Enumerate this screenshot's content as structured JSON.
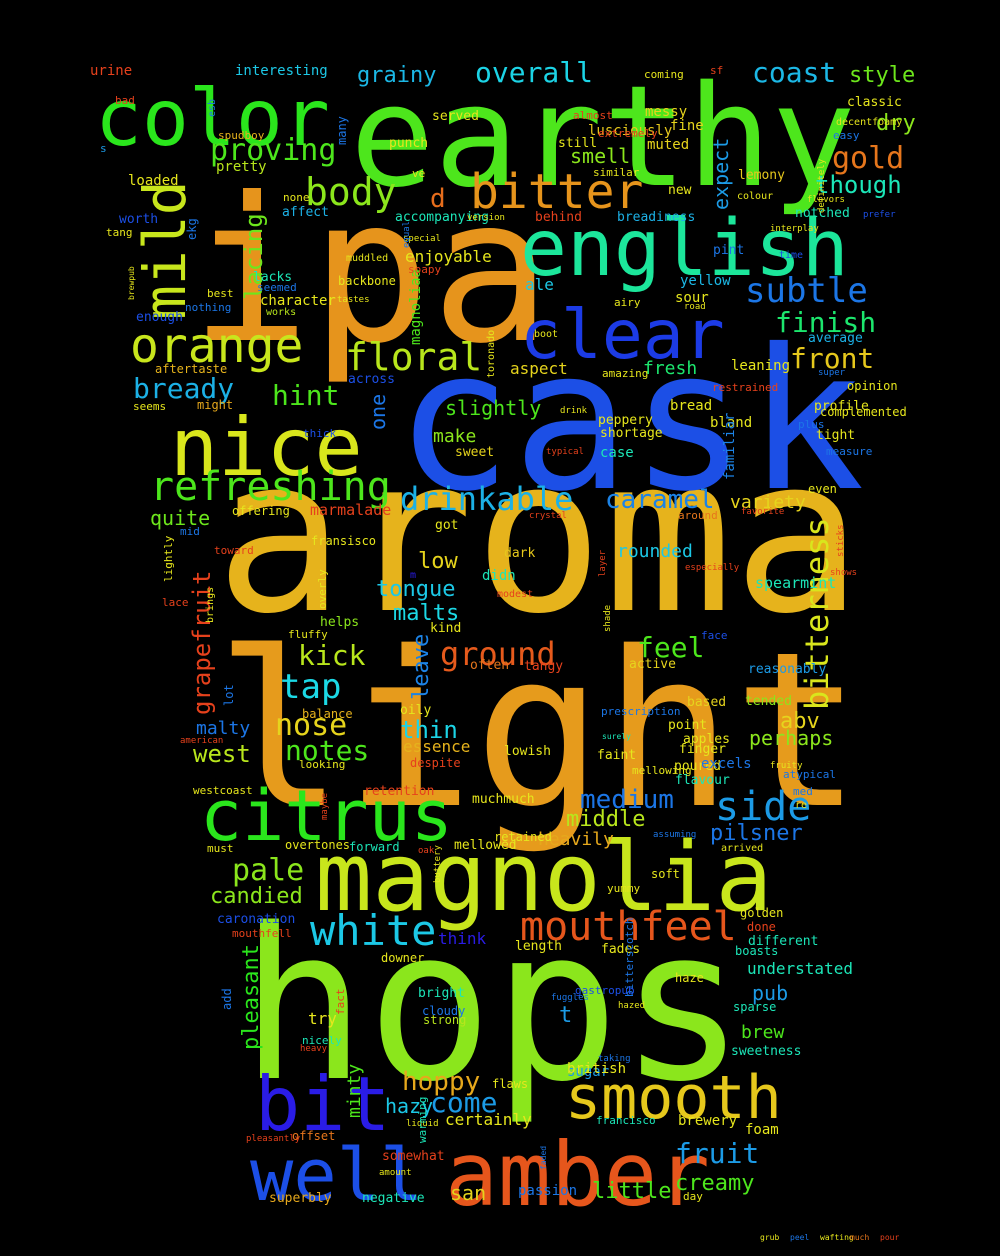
{
  "background_color": "#000000",
  "words": [
    {
      "text": "aroma",
      "color": "#e6b31c"
    },
    {
      "text": "light",
      "color": "#e69b1c"
    },
    {
      "text": "hops",
      "color": "#8be61c"
    },
    {
      "text": "cask",
      "color": "#1c4fe6"
    },
    {
      "text": "ipa",
      "color": "#e6941c"
    },
    {
      "text": "earthy",
      "color": "#4de61c"
    },
    {
      "text": "magnolia",
      "color": "#c8e61c"
    },
    {
      "text": "nice",
      "color": "#d9e61c"
    },
    {
      "text": "amber",
      "color": "#e6561c"
    },
    {
      "text": "english",
      "color": "#1ce69b"
    },
    {
      "text": "color",
      "color": "#2ae61c"
    },
    {
      "text": "citrus",
      "color": "#2ae61c"
    },
    {
      "text": "well",
      "color": "#1c4fe6"
    },
    {
      "text": "bit",
      "color": "#2a1ce6"
    },
    {
      "text": "smooth",
      "color": "#e6c81c"
    },
    {
      "text": "clear",
      "color": "#1c3be6"
    },
    {
      "text": "bitter",
      "color": "#e6941c"
    },
    {
      "text": "mild",
      "color": "#c8e61c"
    },
    {
      "text": "refreshing",
      "color": "#4de61c"
    },
    {
      "text": "orange",
      "color": "#c8e61c"
    },
    {
      "text": "mouthfeel",
      "color": "#e6561c"
    },
    {
      "text": "white",
      "color": "#1cc8e6"
    },
    {
      "text": "floral",
      "color": "#b8e61c"
    },
    {
      "text": "drinkable",
      "color": "#1cb1e6"
    },
    {
      "text": "body",
      "color": "#8be61c"
    },
    {
      "text": "bitterness",
      "color": "#d9e61c"
    },
    {
      "text": "ground",
      "color": "#e65a1c"
    },
    {
      "text": "tap",
      "color": "#1cd9e6"
    },
    {
      "text": "nose",
      "color": "#e6d41c"
    },
    {
      "text": "notes",
      "color": "#4de61c"
    },
    {
      "text": "side",
      "color": "#1c9be6"
    },
    {
      "text": "medium",
      "color": "#1c76e6"
    },
    {
      "text": "subtle",
      "color": "#1c76e6"
    },
    {
      "text": "finish",
      "color": "#1ce66d"
    },
    {
      "text": "grapefruit",
      "color": "#e6411c"
    },
    {
      "text": "hoppy",
      "color": "#e6a81c"
    },
    {
      "text": "pale",
      "color": "#8be61c"
    },
    {
      "text": "proving",
      "color": "#4de61c"
    },
    {
      "text": "bready",
      "color": "#1cb1e6"
    },
    {
      "text": "overall",
      "color": "#1cd4e6"
    },
    {
      "text": "coast",
      "color": "#1cb8e6"
    },
    {
      "text": "front",
      "color": "#e6c81c"
    },
    {
      "text": "though",
      "color": "#1ce6b8"
    },
    {
      "text": "gold",
      "color": "#e6761c"
    },
    {
      "text": "caramel",
      "color": "#1c83e6"
    },
    {
      "text": "feel",
      "color": "#4de61c"
    },
    {
      "text": "kick",
      "color": "#b8e61c"
    },
    {
      "text": "come",
      "color": "#1c9be6"
    },
    {
      "text": "fruit",
      "color": "#1c9be6"
    },
    {
      "text": "pleasant",
      "color": "#2ae61c"
    },
    {
      "text": "lacing",
      "color": "#6de61c"
    },
    {
      "text": "hint",
      "color": "#4de61c"
    },
    {
      "text": "candied",
      "color": "#8be61c"
    },
    {
      "text": "creamy",
      "color": "#4de61c"
    },
    {
      "text": "grainy",
      "color": "#1cb8e6"
    },
    {
      "text": "style",
      "color": "#6de61c"
    },
    {
      "text": "leave",
      "color": "#1c83e6"
    },
    {
      "text": "dry",
      "color": "#8be61c"
    },
    {
      "text": "little",
      "color": "#4de61c"
    },
    {
      "text": "pilsner",
      "color": "#1c76e6"
    },
    {
      "text": "thin",
      "color": "#1cd4e6"
    },
    {
      "text": "quite",
      "color": "#6de61c"
    },
    {
      "text": "malts",
      "color": "#1cd9e6"
    },
    {
      "text": "d",
      "color": "#e66d1c"
    },
    {
      "text": "smell",
      "color": "#8be61c"
    },
    {
      "text": "west",
      "color": "#b8e61c"
    },
    {
      "text": "middle",
      "color": "#b8e61c"
    },
    {
      "text": "low",
      "color": "#e6d41c"
    },
    {
      "text": "abv",
      "color": "#e6d41c"
    },
    {
      "text": "perhaps",
      "color": "#8be61c"
    },
    {
      "text": "tongue",
      "color": "#1cc8e6"
    },
    {
      "text": "expect",
      "color": "#1c9be6"
    },
    {
      "text": "hazy",
      "color": "#1cc8e6"
    },
    {
      "text": "minty",
      "color": "#4de61c"
    },
    {
      "text": "slightly",
      "color": "#4de61c"
    },
    {
      "text": "one",
      "color": "#1c76e6"
    },
    {
      "text": "heavily",
      "color": "#e6a81c"
    },
    {
      "text": "variety",
      "color": "#e6d41c"
    },
    {
      "text": "fresh",
      "color": "#1ce66d"
    },
    {
      "text": "brew",
      "color": "#4de61c"
    },
    {
      "text": "pub",
      "color": "#1c9be6"
    },
    {
      "text": "malty",
      "color": "#1c76e6"
    },
    {
      "text": "t",
      "color": "#1c9be6"
    },
    {
      "text": "san",
      "color": "#e6d41c"
    },
    {
      "text": "think",
      "color": "#2a1ce6"
    },
    {
      "text": "essence",
      "color": "#e6b31c"
    },
    {
      "text": "aspect",
      "color": "#e6d41c"
    },
    {
      "text": "rounded",
      "color": "#1cc8e6"
    },
    {
      "text": "ale",
      "color": "#1cc8e6"
    },
    {
      "text": "enjoyable",
      "color": "#e6e61c"
    },
    {
      "text": "certainly",
      "color": "#e6e61c"
    },
    {
      "text": "character",
      "color": "#e6e61c"
    },
    {
      "text": "sugar",
      "color": "#1c9be6"
    },
    {
      "text": "understated",
      "color": "#1ce6b8"
    },
    {
      "text": "make",
      "color": "#8be61c"
    },
    {
      "text": "didn",
      "color": "#1ce6b8"
    },
    {
      "text": "pretty",
      "color": "#b8e61c"
    },
    {
      "text": "magnoliaa",
      "color": "#4de61c"
    },
    {
      "text": "urine",
      "color": "#e6411c"
    },
    {
      "text": "interesting",
      "color": "#1cc8e6"
    },
    {
      "text": "lusciously",
      "color": "#e6c81c"
    },
    {
      "text": "fine",
      "color": "#e6d41c"
    },
    {
      "text": "messy",
      "color": "#e6d41c"
    },
    {
      "text": "muted",
      "color": "#e6d41c"
    },
    {
      "text": "punch",
      "color": "#e6e61c"
    },
    {
      "text": "served",
      "color": "#e6e61c"
    },
    {
      "text": "classic",
      "color": "#e6e61c"
    },
    {
      "text": "still",
      "color": "#e6e61c"
    },
    {
      "text": "lemony",
      "color": "#e6c81c"
    },
    {
      "text": "sour",
      "color": "#e6e61c"
    },
    {
      "text": "yellow",
      "color": "#1cb8e6"
    },
    {
      "text": "average",
      "color": "#1cb1e6"
    },
    {
      "text": "leaning",
      "color": "#e6e61c"
    },
    {
      "text": "bread",
      "color": "#e6e61c"
    },
    {
      "text": "shortage",
      "color": "#e6e61c"
    },
    {
      "text": "peppery",
      "color": "#e6e61c"
    },
    {
      "text": "bland",
      "color": "#e6e61c"
    },
    {
      "text": "case",
      "color": "#1ce6b8"
    },
    {
      "text": "familiar",
      "color": "#1c83e6"
    },
    {
      "text": "affect",
      "color": "#1cb1e6"
    },
    {
      "text": "accompanying",
      "color": "#1ce6b8"
    },
    {
      "text": "behind",
      "color": "#e6411c"
    },
    {
      "text": "breadiness",
      "color": "#1cb1e6"
    },
    {
      "text": "notched",
      "color": "#1ce6b8"
    },
    {
      "text": "new",
      "color": "#e6e61c"
    },
    {
      "text": "sweet",
      "color": "#e6d41c"
    },
    {
      "text": "across",
      "color": "#1c4fe6"
    },
    {
      "text": "dark",
      "color": "#e6c81c"
    },
    {
      "text": "got",
      "color": "#e6e61c"
    },
    {
      "text": "kind",
      "color": "#e6e61c"
    },
    {
      "text": "helps",
      "color": "#8be61c"
    },
    {
      "text": "often",
      "color": "#e6761c"
    },
    {
      "text": "tangy",
      "color": "#e6411c"
    },
    {
      "text": "active",
      "color": "#e6d41c"
    },
    {
      "text": "reasonably",
      "color": "#1c9be6"
    },
    {
      "text": "tended",
      "color": "#8be61c"
    },
    {
      "text": "based",
      "color": "#e6d41c"
    },
    {
      "text": "point",
      "color": "#e6e61c"
    },
    {
      "text": "apples",
      "color": "#e6e61c"
    },
    {
      "text": "finger",
      "color": "#e6e61c"
    },
    {
      "text": "faint",
      "color": "#e6e61c"
    },
    {
      "text": "poured",
      "color": "#e6e61c"
    },
    {
      "text": "flavour",
      "color": "#1ce6b8"
    },
    {
      "text": "oily",
      "color": "#e6e61c"
    },
    {
      "text": "despite",
      "color": "#e6411c"
    },
    {
      "text": "lowish",
      "color": "#e6e61c"
    },
    {
      "text": "balance",
      "color": "#e6b31c"
    },
    {
      "text": "retention",
      "color": "#e6411c"
    },
    {
      "text": "muchmuch",
      "color": "#e6e61c"
    },
    {
      "text": "westcoast",
      "color": "#e6e61c"
    },
    {
      "text": "forward",
      "color": "#1ce6b8"
    },
    {
      "text": "overtones",
      "color": "#e6e61c"
    },
    {
      "text": "mellowed",
      "color": "#e6e61c"
    },
    {
      "text": "retained",
      "color": "#e6e61c"
    },
    {
      "text": "soft",
      "color": "#e6e61c"
    },
    {
      "text": "yummy",
      "color": "#e6e61c"
    },
    {
      "text": "golden",
      "color": "#e6e61c"
    },
    {
      "text": "done",
      "color": "#e6411c"
    },
    {
      "text": "different",
      "color": "#1ce6b8"
    },
    {
      "text": "boasts",
      "color": "#1ce6b8"
    },
    {
      "text": "length",
      "color": "#e6e61c"
    },
    {
      "text": "fades",
      "color": "#e6e61c"
    },
    {
      "text": "haze",
      "color": "#e6e61c"
    },
    {
      "text": "sparse",
      "color": "#1ce6b8"
    },
    {
      "text": "sweetness",
      "color": "#1ce6b8"
    },
    {
      "text": "bright",
      "color": "#1ce6b8"
    },
    {
      "text": "cloudy",
      "color": "#1c76e6"
    },
    {
      "text": "strong",
      "color": "#b8e61c"
    },
    {
      "text": "british",
      "color": "#e6e61c"
    },
    {
      "text": "flaws",
      "color": "#e6e61c"
    },
    {
      "text": "brewery",
      "color": "#e6e61c"
    },
    {
      "text": "foam",
      "color": "#e6e61c"
    },
    {
      "text": "francisco",
      "color": "#1ce6b8"
    },
    {
      "text": "offset",
      "color": "#e6761c"
    },
    {
      "text": "somewhat",
      "color": "#e6411c"
    },
    {
      "text": "passion",
      "color": "#1c76e6"
    },
    {
      "text": "day",
      "color": "#e6e61c"
    },
    {
      "text": "superbly",
      "color": "#e6a81c"
    },
    {
      "text": "negative",
      "color": "#1ce6b8"
    },
    {
      "text": "caronation",
      "color": "#1c4fe6"
    },
    {
      "text": "mouthfell",
      "color": "#e6411c"
    },
    {
      "text": "add",
      "color": "#1c76e6"
    },
    {
      "text": "downer",
      "color": "#e6e61c"
    },
    {
      "text": "nicely",
      "color": "#1ce6b8"
    },
    {
      "text": "try",
      "color": "#e6e61c"
    },
    {
      "text": "loaded",
      "color": "#e6e61c"
    },
    {
      "text": "s",
      "color": "#1c9be6"
    },
    {
      "text": "worth",
      "color": "#1c4fe6"
    },
    {
      "text": "tang",
      "color": "#e6e61c"
    },
    {
      "text": "enough",
      "color": "#1c4fe6"
    },
    {
      "text": "aftertaste",
      "color": "#e6b31c"
    },
    {
      "text": "might",
      "color": "#e6a81c"
    },
    {
      "text": "seems",
      "color": "#e6e61c"
    },
    {
      "text": "bad",
      "color": "#e6411c"
    },
    {
      "text": "spudboy",
      "color": "#e6b31c"
    },
    {
      "text": "lacks",
      "color": "#1ce6b8"
    },
    {
      "text": "seemed",
      "color": "#1c76e6"
    },
    {
      "text": "works",
      "color": "#b8e61c"
    },
    {
      "text": "backbone",
      "color": "#e6e61c"
    },
    {
      "text": "muddled",
      "color": "#e6e61c"
    },
    {
      "text": "tastes",
      "color": "#e6e61c"
    },
    {
      "text": "soapy",
      "color": "#e6411c"
    },
    {
      "text": "best",
      "color": "#e6e61c"
    },
    {
      "text": "nothing",
      "color": "#1c76e6"
    },
    {
      "text": "none",
      "color": "#e6e61c"
    },
    {
      "text": "ekg",
      "color": "#1c76e6"
    },
    {
      "text": "many",
      "color": "#1c76e6"
    },
    {
      "text": "ve",
      "color": "#e6e61c"
    },
    {
      "text": "similar",
      "color": "#e6e61c"
    },
    {
      "text": "version",
      "color": "#e6e61c"
    },
    {
      "text": "special",
      "color": "#e6e61c"
    },
    {
      "text": "equal",
      "color": "#1c76e6"
    },
    {
      "text": "almost",
      "color": "#e6411c"
    },
    {
      "text": "extremely",
      "color": "#e6411c"
    },
    {
      "text": "coming",
      "color": "#e6e61c"
    },
    {
      "text": "sf",
      "color": "#e6411c"
    },
    {
      "text": "decentfoamy",
      "color": "#e6e61c"
    },
    {
      "text": "easy",
      "color": "#1c76e6"
    },
    {
      "text": "flavors",
      "color": "#e6e61c"
    },
    {
      "text": "prefer",
      "color": "#1c4fe6"
    },
    {
      "text": "colour",
      "color": "#e6e61c"
    },
    {
      "text": "interplay",
      "color": "#e6e61c"
    },
    {
      "text": "definitely",
      "color": "#e6e61c"
    },
    {
      "text": "time",
      "color": "#1c4fe6"
    },
    {
      "text": "pint",
      "color": "#1c76e6"
    },
    {
      "text": "airy",
      "color": "#e6e61c"
    },
    {
      "text": "road",
      "color": "#e6e61c"
    },
    {
      "text": "boot",
      "color": "#e6e61c"
    },
    {
      "text": "super",
      "color": "#1c76e6"
    },
    {
      "text": "opinion",
      "color": "#e6e61c"
    },
    {
      "text": "restrained",
      "color": "#e6411c"
    },
    {
      "text": "profile",
      "color": "#e6e61c"
    },
    {
      "text": "complemented",
      "color": "#e6e61c"
    },
    {
      "text": "plus",
      "color": "#1c76e6"
    },
    {
      "text": "tight",
      "color": "#e6e61c"
    },
    {
      "text": "measure",
      "color": "#1c76e6"
    },
    {
      "text": "even",
      "color": "#e6e61c"
    },
    {
      "text": "favorite",
      "color": "#e6411c"
    },
    {
      "text": "around",
      "color": "#e6761c"
    },
    {
      "text": "sticks",
      "color": "#e6411c"
    },
    {
      "text": "shows",
      "color": "#e6411c"
    },
    {
      "text": "especially",
      "color": "#e6411c"
    },
    {
      "text": "layer",
      "color": "#e6411c"
    },
    {
      "text": "spearmint",
      "color": "#1ce6b8"
    },
    {
      "text": "face",
      "color": "#1c4fe6"
    },
    {
      "text": "shade",
      "color": "#e6e61c"
    },
    {
      "text": "modest",
      "color": "#e6411c"
    },
    {
      "text": "m",
      "color": "#2a1ce6"
    },
    {
      "text": "crystal",
      "color": "#e6411c"
    },
    {
      "text": "offering",
      "color": "#e6e61c"
    },
    {
      "text": "mid",
      "color": "#1c76e6"
    },
    {
      "text": "marmalade",
      "color": "#e6411c"
    },
    {
      "text": "fransisco",
      "color": "#e6e61c"
    },
    {
      "text": "toward",
      "color": "#e6411c"
    },
    {
      "text": "lightly",
      "color": "#e6e61c"
    },
    {
      "text": "lace",
      "color": "#e6411c"
    },
    {
      "text": "brings",
      "color": "#e6e61c"
    },
    {
      "text": "overly",
      "color": "#e6e61c"
    },
    {
      "text": "fluffy",
      "color": "#e6e61c"
    },
    {
      "text": "lot",
      "color": "#1c76e6"
    },
    {
      "text": "american",
      "color": "#e6411c"
    },
    {
      "text": "looking",
      "color": "#e6e61c"
    },
    {
      "text": "prescription",
      "color": "#1c76e6"
    },
    {
      "text": "surely",
      "color": "#1ce6b8"
    },
    {
      "text": "mellowing",
      "color": "#e6e61c"
    },
    {
      "text": "excels",
      "color": "#1c76e6"
    },
    {
      "text": "fruity",
      "color": "#e6e61c"
    },
    {
      "text": "atypical",
      "color": "#1c76e6"
    },
    {
      "text": "med",
      "color": "#1c76e6"
    },
    {
      "text": "re",
      "color": "#e6e61c"
    },
    {
      "text": "assuming",
      "color": "#1c76e6"
    },
    {
      "text": "arrived",
      "color": "#e6e61c"
    },
    {
      "text": "must",
      "color": "#e6e61c"
    },
    {
      "text": "maybe",
      "color": "#e6411c"
    },
    {
      "text": "oak",
      "color": "#e6411c"
    },
    {
      "text": "buttery",
      "color": "#e6e61c"
    },
    {
      "text": "bitterscotch",
      "color": "#1c76e6"
    },
    {
      "text": "gastropub",
      "color": "#1c4fe6"
    },
    {
      "text": "fuggles",
      "color": "#1c76e6"
    },
    {
      "text": "hazed",
      "color": "#e6e61c"
    },
    {
      "text": "fact",
      "color": "#e6411c"
    },
    {
      "text": "heavy",
      "color": "#e6411c"
    },
    {
      "text": "taking",
      "color": "#1c76e6"
    },
    {
      "text": "liquid",
      "color": "#e6e61c"
    },
    {
      "text": "warming",
      "color": "#1ce6b8"
    },
    {
      "text": "faded",
      "color": "#1c76e6"
    },
    {
      "text": "pleasantly",
      "color": "#e6411c"
    },
    {
      "text": "amount",
      "color": "#e6e61c"
    },
    {
      "text": "brewpub",
      "color": "#e6e61c"
    },
    {
      "text": "esb",
      "color": "#1c76e6"
    },
    {
      "text": "toronado",
      "color": "#e6e61c"
    },
    {
      "text": "amazing",
      "color": "#e6e61c"
    },
    {
      "text": "drink",
      "color": "#e6e61c"
    },
    {
      "text": "typical",
      "color": "#e6411c"
    },
    {
      "text": "thick",
      "color": "#1c4fe6"
    },
    {
      "text": "grub",
      "color": "#e6e61c"
    },
    {
      "text": "peel",
      "color": "#1c76e6"
    },
    {
      "text": "wafting",
      "color": "#e6e61c"
    },
    {
      "text": "much",
      "color": "#e6761c"
    },
    {
      "text": "pour",
      "color": "#e6411c"
    }
  ]
}
